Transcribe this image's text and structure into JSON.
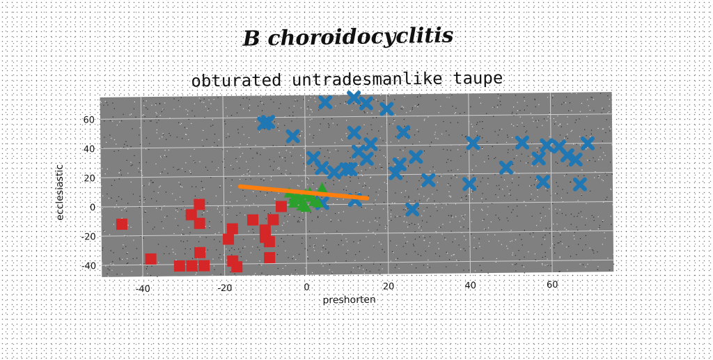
{
  "suptitle": "B choroidocyclitis",
  "chart_data": {
    "type": "scatter",
    "title": "obturated untradesmanlike taupe",
    "xlabel": "preshorten",
    "ylabel": "ecclesiastic",
    "xlim": [
      -50,
      75
    ],
    "ylim": [
      -48,
      75
    ],
    "xticks": [
      -40,
      -20,
      0,
      20,
      40,
      60
    ],
    "yticks": [
      -40,
      -20,
      0,
      20,
      40,
      60
    ],
    "grid": true,
    "background": "#808080",
    "series": [
      {
        "marker": "x",
        "color": "#1f77b4",
        "points": [
          [
            5,
            70
          ],
          [
            12,
            73
          ],
          [
            15,
            69
          ],
          [
            20,
            65
          ],
          [
            -9,
            57
          ],
          [
            -10,
            56
          ],
          [
            -3,
            47
          ],
          [
            24,
            49
          ],
          [
            12,
            49
          ],
          [
            16,
            41
          ],
          [
            13,
            36
          ],
          [
            15,
            31
          ],
          [
            2,
            32
          ],
          [
            4,
            25
          ],
          [
            7,
            22
          ],
          [
            10,
            24
          ],
          [
            11,
            24
          ],
          [
            22,
            21
          ],
          [
            23,
            27
          ],
          [
            27,
            32
          ],
          [
            30,
            16
          ],
          [
            41,
            41
          ],
          [
            40,
            13
          ],
          [
            53,
            41
          ],
          [
            49,
            24
          ],
          [
            57,
            30
          ],
          [
            58,
            14
          ],
          [
            59,
            39
          ],
          [
            62,
            38
          ],
          [
            64,
            32
          ],
          [
            66,
            29
          ],
          [
            67,
            12
          ],
          [
            69,
            40
          ],
          [
            12,
            3
          ],
          [
            4,
            1
          ],
          [
            26,
            -4
          ]
        ]
      },
      {
        "marker": "s",
        "color": "#d62728",
        "points": [
          [
            -45,
            -12
          ],
          [
            -38,
            -36
          ],
          [
            -26,
            1
          ],
          [
            -28,
            -6
          ],
          [
            -26,
            -12
          ],
          [
            -18,
            -16
          ],
          [
            -19,
            -23
          ],
          [
            -26,
            -32
          ],
          [
            -28,
            -41
          ],
          [
            -25,
            -41
          ],
          [
            -31,
            -41
          ],
          [
            -18,
            -38
          ],
          [
            -17,
            -42
          ],
          [
            -13,
            -10
          ],
          [
            -10,
            -17
          ],
          [
            -10,
            -22
          ],
          [
            -9,
            -25
          ],
          [
            -9,
            -36
          ],
          [
            -8,
            -10
          ],
          [
            -6,
            -1
          ]
        ]
      },
      {
        "marker": "^",
        "color": "#2ca02c",
        "points": [
          [
            -4,
            8
          ],
          [
            -3,
            4
          ],
          [
            -2,
            6
          ],
          [
            -1,
            3
          ],
          [
            0,
            7
          ],
          [
            1,
            5
          ],
          [
            2,
            2
          ],
          [
            -1,
            -1
          ],
          [
            0,
            -2
          ],
          [
            3,
            1
          ],
          [
            -3,
            1
          ],
          [
            1,
            8
          ],
          [
            4,
            11
          ]
        ]
      },
      {
        "marker": "line",
        "color": "#ff7f0e",
        "points": [
          [
            -16,
            13
          ],
          [
            15,
            4
          ]
        ]
      }
    ]
  }
}
